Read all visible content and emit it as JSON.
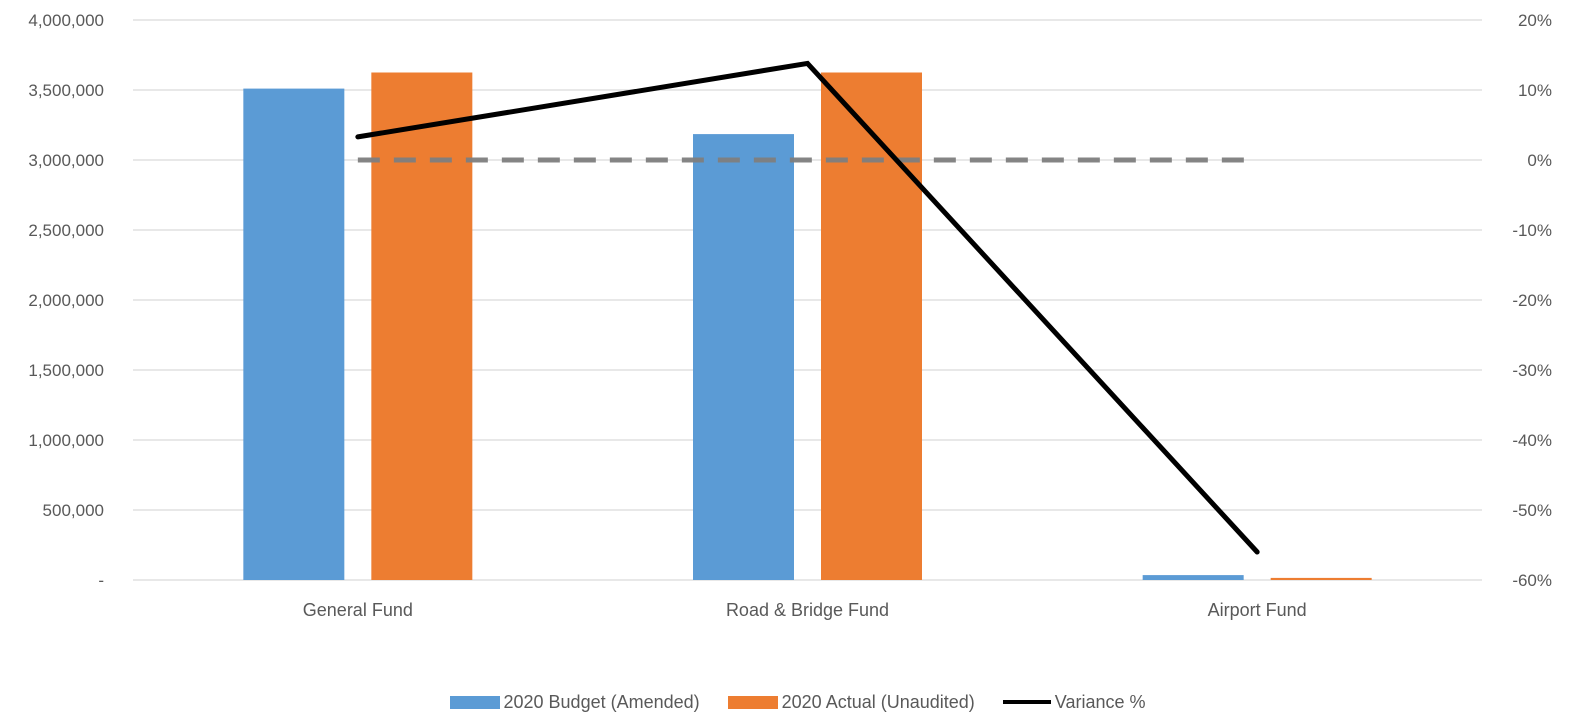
{
  "chart_data": {
    "type": "bar",
    "categories": [
      "General Fund",
      "Road & Bridge Fund",
      "Airport Fund"
    ],
    "series": [
      {
        "name": "2020 Budget (Amended)",
        "kind": "bar",
        "axis": "left",
        "color": "#5B9BD5",
        "values": [
          3510000,
          3185000,
          35000
        ]
      },
      {
        "name": "2020 Actual (Unaudited)",
        "kind": "bar",
        "axis": "left",
        "color": "#ED7D31",
        "values": [
          3625000,
          3625000,
          15000
        ]
      },
      {
        "name": "Variance %",
        "kind": "line",
        "axis": "right",
        "color": "#000000",
        "values": [
          3.3,
          13.8,
          -56
        ]
      }
    ],
    "reference_line": {
      "kind": "dashed",
      "axis": "right",
      "value": 0,
      "color": "#7F7F7F"
    },
    "y_left": {
      "ylim": [
        0,
        4000000
      ],
      "ticks": [
        "-",
        "500,000",
        "1,000,000",
        "1,500,000",
        "2,000,000",
        "2,500,000",
        "3,000,000",
        "3,500,000",
        "4,000,000"
      ]
    },
    "y_right": {
      "ylim": [
        -60,
        20
      ],
      "ticks": [
        "-60%",
        "-50%",
        "-40%",
        "-30%",
        "-20%",
        "-10%",
        "0%",
        "10%",
        "20%"
      ]
    },
    "grid": true,
    "legend_position": "bottom"
  }
}
